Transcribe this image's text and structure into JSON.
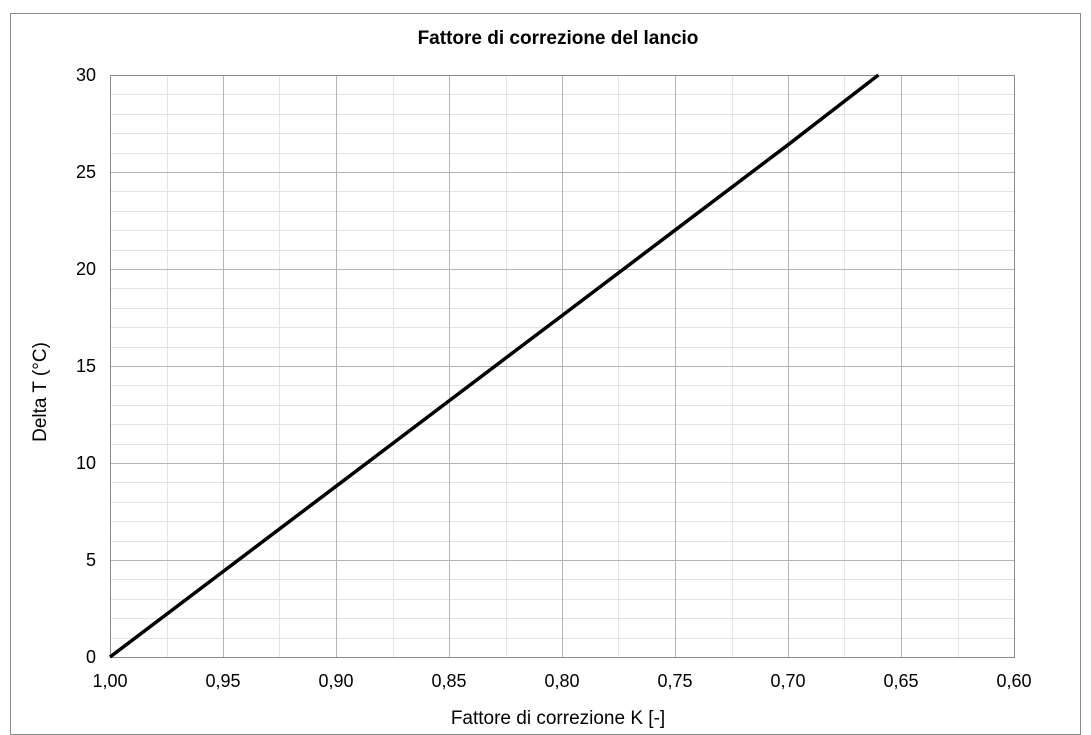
{
  "chart_data": {
    "type": "line",
    "title": "Fattore di correzione del lancio",
    "xlabel": "Fattore di correzione K [-]",
    "ylabel": "Delta T (°C)",
    "xlim": [
      1.0,
      0.6
    ],
    "ylim": [
      0,
      30
    ],
    "x_reversed": true,
    "grid": true,
    "xticks": [
      1.0,
      0.95,
      0.9,
      0.85,
      0.8,
      0.75,
      0.7,
      0.65,
      0.6
    ],
    "xtick_labels": [
      "1,00",
      "0,95",
      "0,90",
      "0,85",
      "0,80",
      "0,75",
      "0,70",
      "0,65",
      "0,60"
    ],
    "yticks": [
      0,
      5,
      10,
      15,
      20,
      25,
      30
    ],
    "ytick_labels": [
      "0",
      "5",
      "10",
      "15",
      "20",
      "25",
      "30"
    ],
    "series": [
      {
        "color": "#000000",
        "x": [
          1.0,
          0.95,
          0.9,
          0.85,
          0.8,
          0.75,
          0.7,
          0.66
        ],
        "y": [
          0,
          4.4,
          8.8,
          13.2,
          17.6,
          22.0,
          26.4,
          30.0
        ]
      }
    ]
  }
}
